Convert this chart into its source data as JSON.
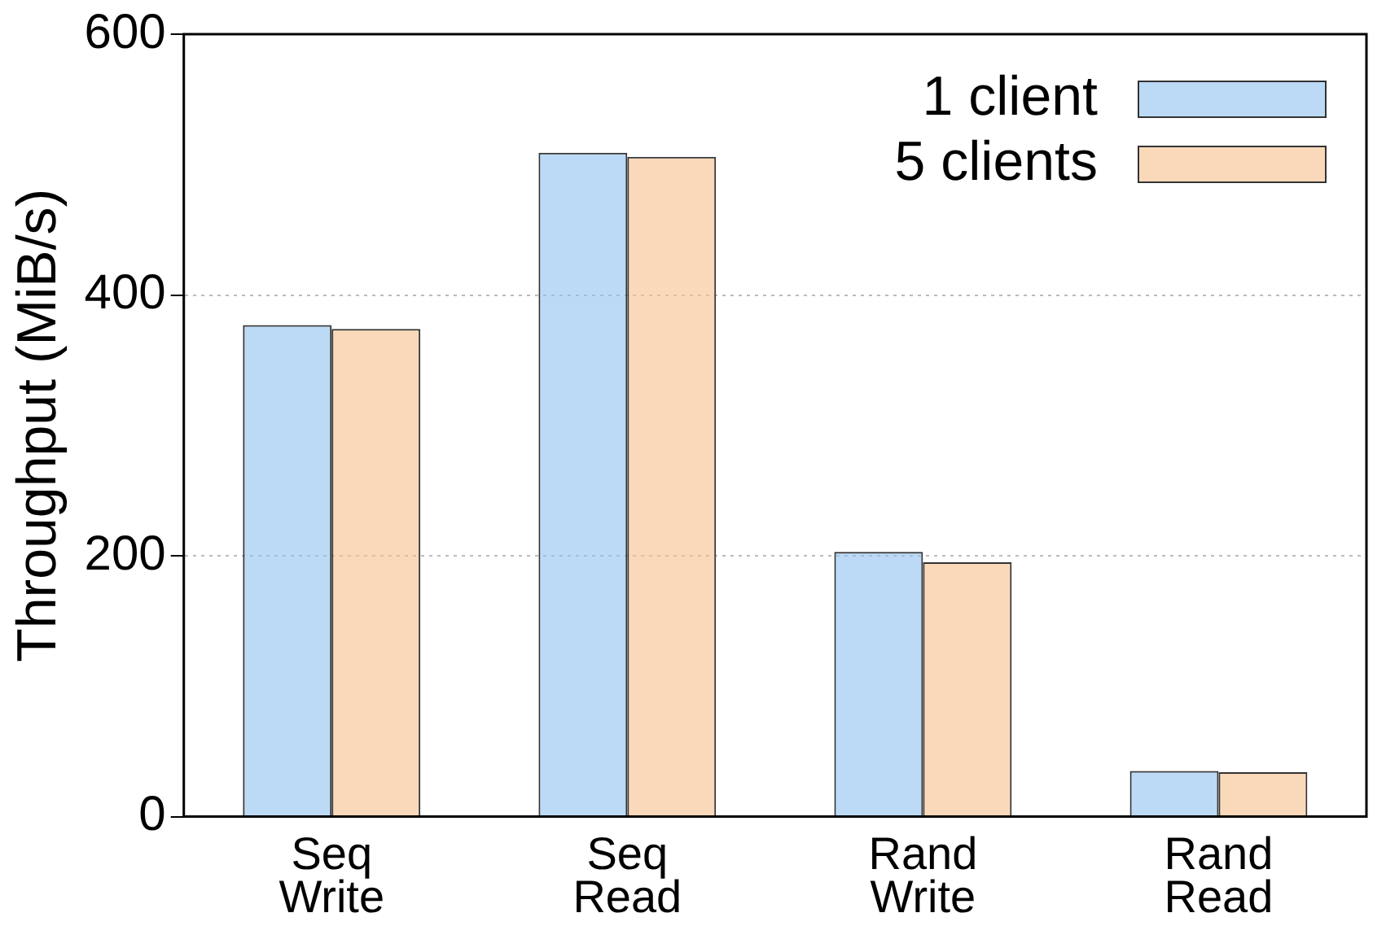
{
  "chart_data": {
    "type": "bar",
    "ylabel": "Throughput (MiB/s)",
    "categories": [
      "Seq\nWrite",
      "Seq\nRead",
      "Rand\nWrite",
      "Rand\nRead"
    ],
    "series": [
      {
        "name": "1 client",
        "color": "#8fc1ee",
        "values": [
          377,
          509,
          203,
          35
        ]
      },
      {
        "name": "5 clients",
        "color": "#f6c08e",
        "values": [
          374,
          506,
          195,
          34
        ]
      }
    ],
    "ylim": [
      0,
      600
    ],
    "yticks": [
      0,
      200,
      400,
      600
    ],
    "grid": "y",
    "legend": "top right"
  }
}
